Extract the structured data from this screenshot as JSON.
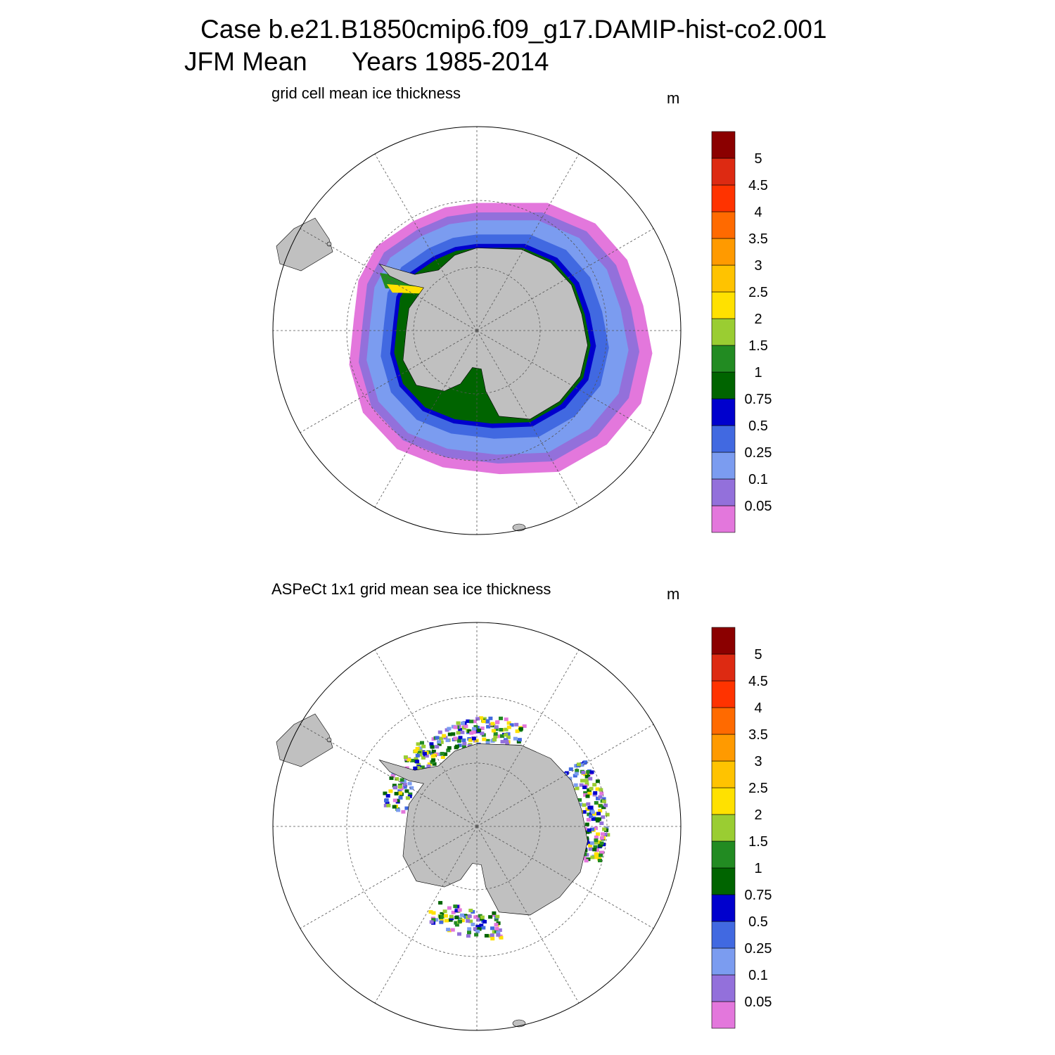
{
  "header": {
    "line1": "Case b.e21.B1850cmip6.f09_g17.DAMIP-hist-co2.001",
    "season": "JFM Mean",
    "years": "Years 1985-2014"
  },
  "panels": [
    {
      "title": "grid cell mean ice thickness",
      "units": "m",
      "colorbar": {
        "levels": [
          0.05,
          0.1,
          0.25,
          0.5,
          0.75,
          1,
          1.5,
          2,
          2.5,
          3,
          3.5,
          4,
          4.5,
          5
        ],
        "colors": [
          "#e377dc",
          "#9370db",
          "#7b9cf0",
          "#4169e1",
          "#0000cd",
          "#006400",
          "#228b22",
          "#9acd32",
          "#ffe100",
          "#ffc300",
          "#ff9a00",
          "#ff6a00",
          "#ff3300",
          "#dd2a12",
          "#8b0000"
        ]
      }
    },
    {
      "title": "ASPeCt 1x1 grid mean sea ice thickness",
      "units": "m",
      "colorbar": {
        "levels": [
          0.05,
          0.1,
          0.25,
          0.5,
          0.75,
          1,
          1.5,
          2,
          2.5,
          3,
          3.5,
          4,
          4.5,
          5
        ],
        "colors": [
          "#e377dc",
          "#9370db",
          "#7b9cf0",
          "#4169e1",
          "#0000cd",
          "#006400",
          "#228b22",
          "#9acd32",
          "#ffe100",
          "#ffc300",
          "#ff9a00",
          "#ff6a00",
          "#ff3300",
          "#dd2a12",
          "#8b0000"
        ]
      }
    }
  ]
}
